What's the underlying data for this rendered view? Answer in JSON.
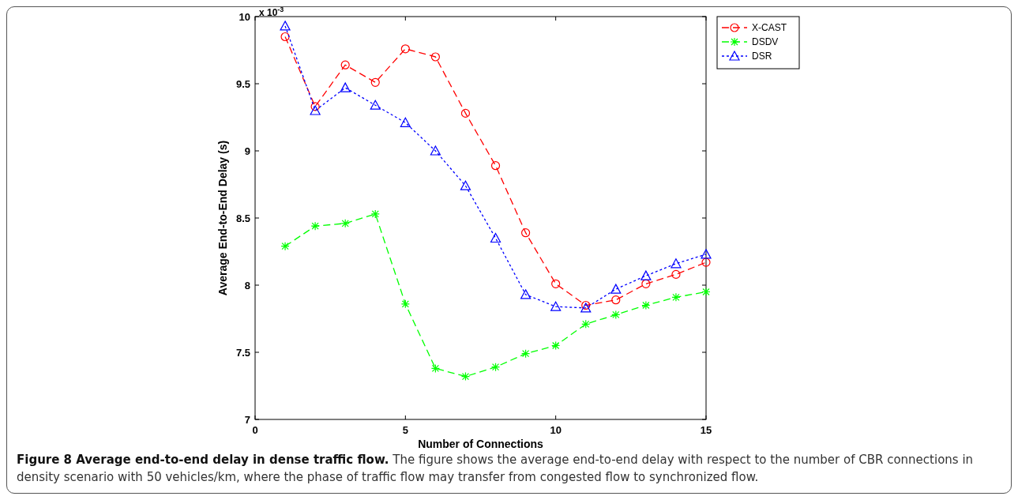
{
  "chart_data": {
    "type": "line",
    "xlabel": "Number of Connections",
    "ylabel": "Average End-to-End Delay (s)",
    "x": [
      1,
      2,
      3,
      4,
      5,
      6,
      7,
      8,
      9,
      10,
      11,
      12,
      13,
      14,
      15
    ],
    "series": [
      {
        "name": "X-CAST",
        "color": "#ff0000",
        "marker": "circle",
        "line_style": "dashed",
        "values": [
          9.85,
          9.33,
          9.64,
          9.51,
          9.76,
          9.7,
          9.28,
          8.89,
          8.39,
          8.01,
          7.85,
          7.89,
          8.01,
          8.08,
          8.17
        ]
      },
      {
        "name": "DSDV",
        "color": "#00ff00",
        "marker": "cross",
        "line_style": "dashed",
        "values": [
          8.29,
          8.44,
          8.46,
          8.53,
          7.86,
          7.38,
          7.32,
          7.39,
          7.49,
          7.55,
          7.71,
          7.78,
          7.85,
          7.91,
          7.95
        ]
      },
      {
        "name": "DSR",
        "color": "#0000ff",
        "marker": "triangle",
        "line_style": "dotted",
        "values": [
          9.93,
          9.3,
          9.47,
          9.34,
          9.21,
          9.0,
          8.74,
          8.35,
          7.93,
          7.84,
          7.83,
          7.97,
          8.07,
          8.16,
          8.23
        ]
      }
    ],
    "xlim": [
      0,
      15
    ],
    "xticks": [
      0,
      5,
      10,
      15
    ],
    "ylim": [
      7,
      10
    ],
    "yticks": [
      7,
      7.5,
      8,
      8.5,
      9,
      9.5,
      10
    ],
    "grid": false,
    "legend": "top right",
    "annotations": [
      "x 10$^{-3}$",
      "Figure 8 Average end-to-end delay in dense traffic flow.",
      "The figure shows the average end-to-end delay with respect to the number of CBR connections in density scenario with 50 vehicles/km, where the phase of traffic flow may transfer from congested flow to synchronized flow."
    ]
  }
}
